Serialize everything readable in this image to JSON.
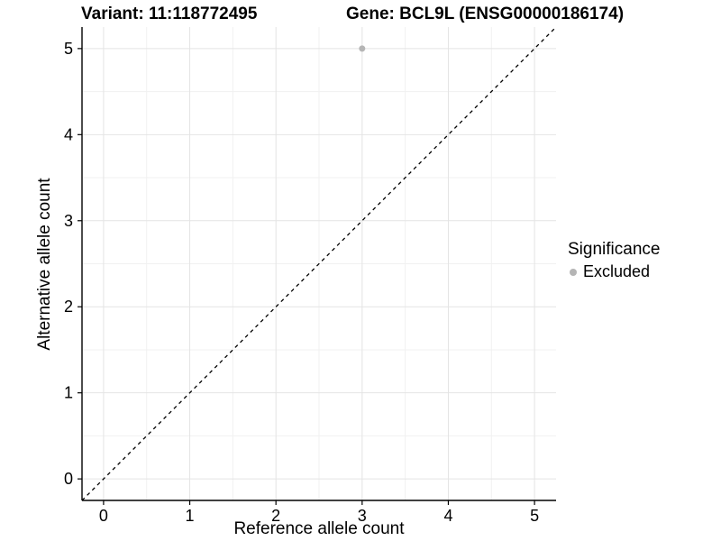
{
  "chart_data": {
    "type": "scatter",
    "title_left": "Variant: 11:118772495",
    "title_right": "Gene: BCL9L (ENSG00000186174)",
    "xlabel": "Reference allele count",
    "ylabel": "Alternative allele count",
    "xlim": [
      -0.25,
      5.25
    ],
    "ylim": [
      -0.25,
      5.25
    ],
    "xticks": [
      0,
      1,
      2,
      3,
      4,
      5
    ],
    "yticks": [
      0,
      1,
      2,
      3,
      4,
      5
    ],
    "xminor": [
      0.5,
      1.5,
      2.5,
      3.5,
      4.5
    ],
    "yminor": [
      0.5,
      1.5,
      2.5,
      3.5,
      4.5
    ],
    "grid": "major+minor",
    "identity_line": {
      "style": "dashed",
      "from": [
        -0.25,
        -0.25
      ],
      "to": [
        5.25,
        5.25
      ],
      "color": "#000000"
    },
    "series": [
      {
        "name": "Excluded",
        "color": "#b5b5b5",
        "points": [
          {
            "x": 3,
            "y": 5
          }
        ]
      }
    ],
    "legend": {
      "position": "right",
      "title": "Significance",
      "items": [
        {
          "label": "Excluded",
          "color": "#b5b5b5"
        }
      ]
    },
    "colors": {
      "background": "#ffffff",
      "grid_major": "#e4e4e4",
      "grid_minor": "#f1f1f1",
      "axis_line": "#000000",
      "text": "#000000"
    }
  }
}
